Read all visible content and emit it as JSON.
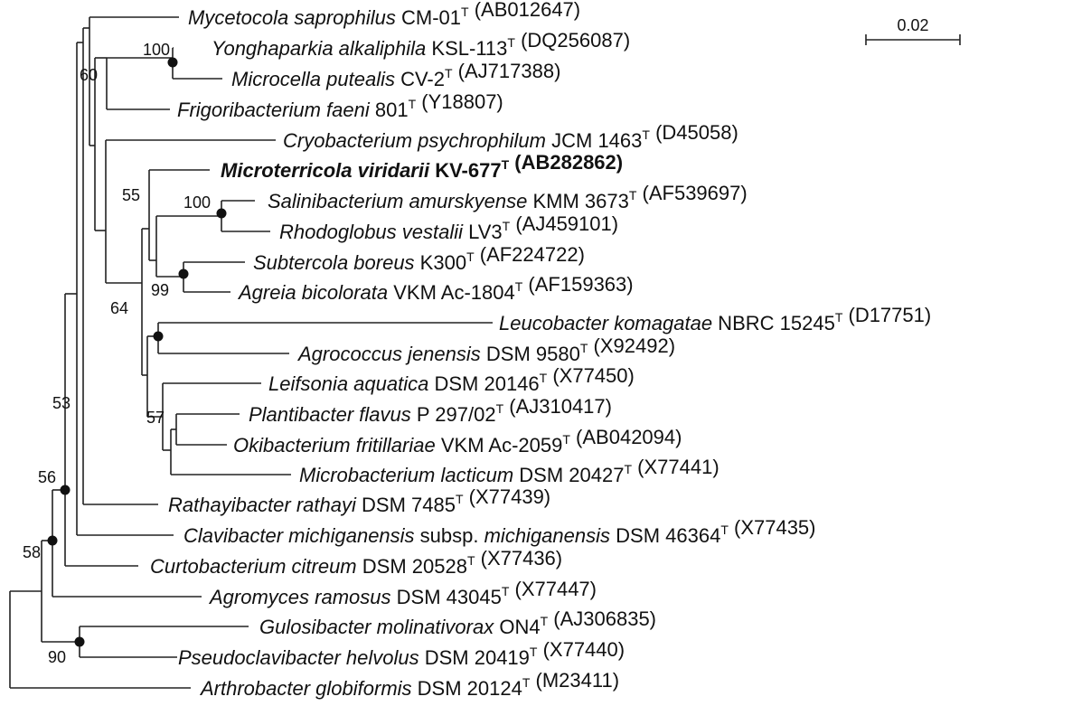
{
  "scale_bar": {
    "label": "0.02"
  },
  "taxa": [
    {
      "id": "mycetocola",
      "parts": [
        {
          "t": "Mycetocola saprophilus",
          "s": "it"
        },
        {
          "t": " CM-01"
        },
        {
          "t": "T",
          "s": "sup"
        },
        {
          "t": " (AB012647)"
        }
      ]
    },
    {
      "id": "yonghaparkia",
      "parts": [
        {
          "t": "Yonghaparkia alkaliphila",
          "s": "it"
        },
        {
          "t": " KSL-113"
        },
        {
          "t": "T",
          "s": "sup"
        },
        {
          "t": " (DQ256087)"
        }
      ]
    },
    {
      "id": "microcella",
      "parts": [
        {
          "t": "Microcella putealis",
          "s": "it"
        },
        {
          "t": " CV-2"
        },
        {
          "t": "T",
          "s": "sup"
        },
        {
          "t": " (AJ717388)"
        }
      ]
    },
    {
      "id": "frigoribacterium",
      "parts": [
        {
          "t": "Frigoribacterium faeni",
          "s": "it"
        },
        {
          "t": " 801"
        },
        {
          "t": "T",
          "s": "sup"
        },
        {
          "t": " (Y18807)"
        }
      ]
    },
    {
      "id": "cryobacterium",
      "parts": [
        {
          "t": "Cryobacterium psychrophilum",
          "s": "it"
        },
        {
          "t": " JCM 1463"
        },
        {
          "t": "T",
          "s": "sup"
        },
        {
          "t": " (D45058)"
        }
      ]
    },
    {
      "id": "microterricola",
      "bold": true,
      "parts": [
        {
          "t": "Microterricola viridarii",
          "s": "it"
        },
        {
          "t": " KV-677"
        },
        {
          "t": "T",
          "s": "sup"
        },
        {
          "t": " (AB282862)"
        }
      ]
    },
    {
      "id": "salinibacterium",
      "parts": [
        {
          "t": "Salinibacterium amurskyense",
          "s": "it"
        },
        {
          "t": " KMM 3673"
        },
        {
          "t": "T",
          "s": "sup"
        },
        {
          "t": " (AF539697)"
        }
      ]
    },
    {
      "id": "rhodoglobus",
      "parts": [
        {
          "t": "Rhodoglobus vestalii",
          "s": "it"
        },
        {
          "t": " LV3"
        },
        {
          "t": "T",
          "s": "sup"
        },
        {
          "t": " (AJ459101)"
        }
      ]
    },
    {
      "id": "subtercola",
      "parts": [
        {
          "t": "Subtercola boreus",
          "s": "it"
        },
        {
          "t": " K300"
        },
        {
          "t": "T",
          "s": "sup"
        },
        {
          "t": " (AF224722)"
        }
      ]
    },
    {
      "id": "agreia",
      "parts": [
        {
          "t": "Agreia bicolorata",
          "s": "it"
        },
        {
          "t": " VKM Ac-1804"
        },
        {
          "t": "T",
          "s": "sup"
        },
        {
          "t": " (AF159363)"
        }
      ]
    },
    {
      "id": "leucobacter",
      "parts": [
        {
          "t": "Leucobacter komagatae",
          "s": "it"
        },
        {
          "t": " NBRC 15245"
        },
        {
          "t": "T",
          "s": "sup"
        },
        {
          "t": " (D17751)"
        }
      ]
    },
    {
      "id": "agrococcus",
      "parts": [
        {
          "t": "Agrococcus jenensis",
          "s": "it"
        },
        {
          "t": " DSM 9580"
        },
        {
          "t": "T",
          "s": "sup"
        },
        {
          "t": " (X92492)"
        }
      ]
    },
    {
      "id": "leifsonia",
      "parts": [
        {
          "t": "Leifsonia aquatica",
          "s": "it"
        },
        {
          "t": " DSM 20146"
        },
        {
          "t": "T",
          "s": "sup"
        },
        {
          "t": " (X77450)"
        }
      ]
    },
    {
      "id": "plantibacter",
      "parts": [
        {
          "t": "Plantibacter flavus",
          "s": "it"
        },
        {
          "t": " P 297/02"
        },
        {
          "t": "T",
          "s": "sup"
        },
        {
          "t": " (AJ310417)"
        }
      ]
    },
    {
      "id": "okibacterium",
      "parts": [
        {
          "t": "Okibacterium fritillariae",
          "s": "it"
        },
        {
          "t": " VKM Ac-2059"
        },
        {
          "t": "T",
          "s": "sup"
        },
        {
          "t": " (AB042094)"
        }
      ]
    },
    {
      "id": "microbacterium",
      "parts": [
        {
          "t": "Microbacterium lacticum",
          "s": "it"
        },
        {
          "t": " DSM 20427"
        },
        {
          "t": "T",
          "s": "sup"
        },
        {
          "t": " (X77441)"
        }
      ]
    },
    {
      "id": "rathayibacter",
      "parts": [
        {
          "t": "Rathayibacter rathayi",
          "s": "it"
        },
        {
          "t": " DSM 7485"
        },
        {
          "t": "T",
          "s": "sup"
        },
        {
          "t": " (X77439)"
        }
      ]
    },
    {
      "id": "clavibacter",
      "parts": [
        {
          "t": "Clavibacter michiganensis",
          "s": "it"
        },
        {
          "t": " subsp. "
        },
        {
          "t": "michiganensis",
          "s": "it"
        },
        {
          "t": " DSM 46364"
        },
        {
          "t": "T",
          "s": "sup"
        },
        {
          "t": " (X77435)"
        }
      ]
    },
    {
      "id": "curtobacterium",
      "parts": [
        {
          "t": "Curtobacterium citreum",
          "s": "it"
        },
        {
          "t": " DSM 20528"
        },
        {
          "t": "T",
          "s": "sup"
        },
        {
          "t": " (X77436)"
        }
      ]
    },
    {
      "id": "agromyces",
      "parts": [
        {
          "t": "Agromyces ramosus",
          "s": "it"
        },
        {
          "t": " DSM 43045"
        },
        {
          "t": "T",
          "s": "sup"
        },
        {
          "t": " (X77447)"
        }
      ]
    },
    {
      "id": "gulosibacter",
      "parts": [
        {
          "t": "Gulosibacter molinativorax",
          "s": "it"
        },
        {
          "t": " ON4"
        },
        {
          "t": "T",
          "s": "sup"
        },
        {
          "t": " (AJ306835)"
        }
      ]
    },
    {
      "id": "pseudoclavibacter",
      "parts": [
        {
          "t": "Pseudoclavibacter helvolus",
          "s": "it"
        },
        {
          "t": " DSM 20419"
        },
        {
          "t": "T",
          "s": "sup"
        },
        {
          "t": " (X77440)"
        }
      ]
    },
    {
      "id": "arthrobacter",
      "parts": [
        {
          "t": "Arthrobacter globiformis",
          "s": "it"
        },
        {
          "t": " DSM 20124"
        },
        {
          "t": "T",
          "s": "sup"
        },
        {
          "t": " (M23411)"
        }
      ]
    }
  ],
  "bootstrap": [
    {
      "id": "bs-100-a",
      "value": "100"
    },
    {
      "id": "bs-60",
      "value": "60"
    },
    {
      "id": "bs-55",
      "value": "55"
    },
    {
      "id": "bs-100-b",
      "value": "100"
    },
    {
      "id": "bs-99",
      "value": "99"
    },
    {
      "id": "bs-64",
      "value": "64"
    },
    {
      "id": "bs-57",
      "value": "57"
    },
    {
      "id": "bs-53",
      "value": "53"
    },
    {
      "id": "bs-56",
      "value": "56"
    },
    {
      "id": "bs-58",
      "value": "58"
    },
    {
      "id": "bs-90",
      "value": "90"
    }
  ]
}
